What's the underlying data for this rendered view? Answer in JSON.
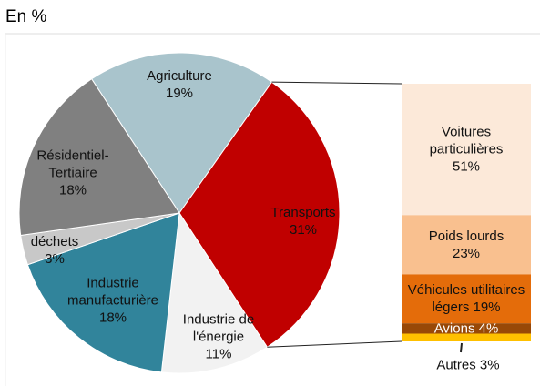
{
  "chart_data": [
    {
      "type": "pie",
      "title": "En %",
      "categories": [
        "Agriculture",
        "Transports",
        "Industrie de l'énergie",
        "Industrie manufacturière",
        "déchets",
        "Résidentiel-Tertiaire"
      ],
      "values": [
        19,
        31,
        11,
        18,
        3,
        18
      ],
      "value_labels": [
        "19%",
        "31%",
        "11%",
        "18%",
        "3%",
        "18%"
      ],
      "colors": [
        "#a9c4cc",
        "#c00000",
        "#f2f2f2",
        "#31849b",
        "#c8c8c8",
        "#808080"
      ]
    },
    {
      "type": "stacked-bar",
      "categories": [
        "Voitures particulières",
        "Poids lourds",
        "Véhicules utilitaires légers",
        "Avions",
        "Autres"
      ],
      "values": [
        51,
        23,
        19,
        4,
        3
      ],
      "value_labels": [
        "51%",
        "23%",
        "19%",
        "4%",
        "3%"
      ],
      "colors": [
        "#fce9d9",
        "#f9c08f",
        "#e46c0a",
        "#984807",
        "#ffc000"
      ]
    }
  ]
}
